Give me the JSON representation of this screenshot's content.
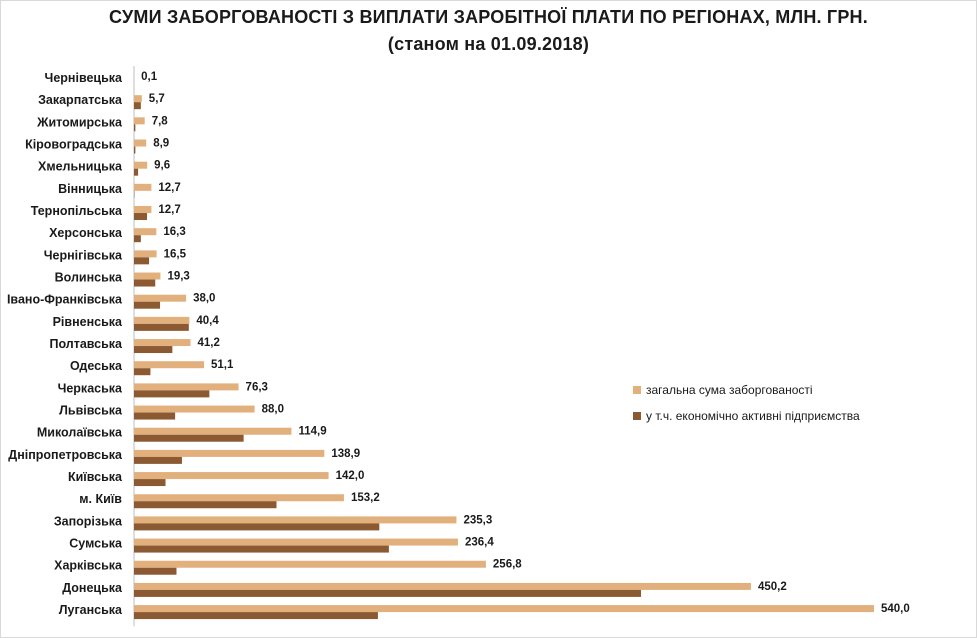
{
  "chart_data": {
    "type": "bar",
    "orientation": "horizontal",
    "title": "СУМИ ЗАБОРГОВАНОСТІ  З ВИПЛАТИ ЗАРОБІТНОЇ ПЛАТИ ПО РЕГІОНАХ, МЛН. ГРН.",
    "subtitle": "(станом  на 01.09.2018)",
    "categories": [
      "Чернівецька",
      "Закарпатська",
      "Житомирська",
      "Кіровоградська",
      "Хмельницька",
      "Вінницька",
      "Тернопільська",
      "Херсонська",
      "Чернігівська",
      "Волинська",
      "Івано-Франківська",
      "Рівненська",
      "Полтавська",
      "Одеська",
      "Черкаська",
      "Львівська",
      "Миколаївська",
      "Дніпропетровська",
      "Київська",
      "м. Київ",
      "Запорізька",
      "Сумська",
      "Харківська",
      "Донецька",
      "Луганська"
    ],
    "series": [
      {
        "name": "загальна сума заборгованості",
        "color": "#e2b07c",
        "values": [
          0.1,
          5.7,
          7.8,
          8.9,
          9.6,
          12.7,
          12.7,
          16.3,
          16.5,
          19.3,
          38.0,
          40.4,
          41.2,
          51.1,
          76.3,
          88.0,
          114.9,
          138.9,
          142.0,
          153.2,
          235.3,
          236.4,
          256.8,
          450.2,
          540.0
        ],
        "value_labels": [
          "0,1",
          "5,7",
          "7,8",
          "8,9",
          "9,6",
          "12,7",
          "12,7",
          "16,3",
          "16,5",
          "19,3",
          "38,0",
          "40,4",
          "41,2",
          "51,1",
          "76,3",
          "88,0",
          "114,9",
          "138,9",
          "142,0",
          "153,2",
          "235,3",
          "236,4",
          "256,8",
          "450,2",
          "540,0"
        ]
      },
      {
        "name": "у т.ч. економічно активні підприємства",
        "color": "#8c5a32",
        "values": [
          0.0,
          5.0,
          1.0,
          1.0,
          3.0,
          0.3,
          9.5,
          5.0,
          11.0,
          15.5,
          19.0,
          40.0,
          28.0,
          12.0,
          55.0,
          30.0,
          80.0,
          35.0,
          23.0,
          104.0,
          179.0,
          186.0,
          31.0,
          370.0,
          178.0
        ]
      }
    ],
    "xlim": [
      0,
      540
    ],
    "grid": false,
    "legend_position": "right"
  }
}
